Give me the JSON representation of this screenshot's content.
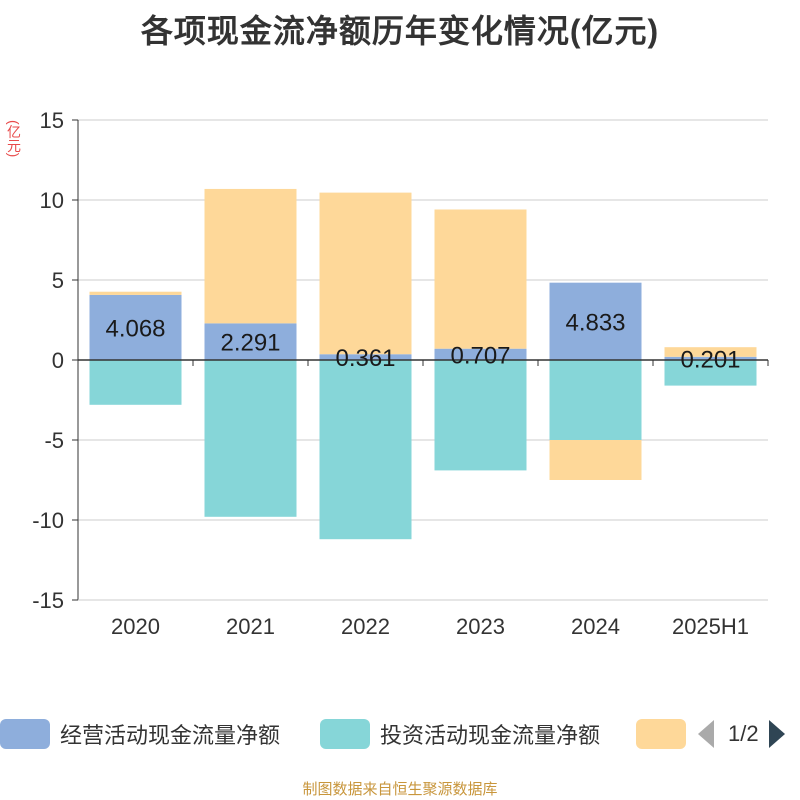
{
  "chart_data": {
    "type": "bar",
    "stacked": true,
    "title": "各项现金流净额历年变化情况(亿元)",
    "unit_label": "(亿元)",
    "categories": [
      "2020",
      "2021",
      "2022",
      "2023",
      "2024",
      "2025H1"
    ],
    "ylim": [
      -15,
      15
    ],
    "yticks": [
      "15",
      "10",
      "5",
      "0",
      "-5",
      "-10",
      "-15"
    ],
    "ytick_values": [
      15,
      10,
      5,
      0,
      -5,
      -10,
      -15
    ],
    "grid": true,
    "legend_position": "bottom",
    "series": [
      {
        "name": "经营活动现金流量净额",
        "color": "#8eaedc",
        "values": [
          4.068,
          2.291,
          0.361,
          0.707,
          4.833,
          0.201
        ],
        "labels": [
          "4.068",
          "2.291",
          "0.361",
          "0.707",
          "4.833",
          "0.201"
        ]
      },
      {
        "name": "投资活动现金流量净额",
        "color": "#86d6d8",
        "values": [
          -2.8,
          -9.8,
          -11.2,
          -6.9,
          -5.0,
          -1.6
        ]
      },
      {
        "name": "",
        "color": "#fed899",
        "values": [
          0.2,
          8.4,
          10.1,
          8.7,
          -2.5,
          0.6
        ]
      }
    ]
  },
  "legend": {
    "items": [
      {
        "label": "经营活动现金流量净额",
        "color": "#8eaedc"
      },
      {
        "label": "投资活动现金流量净额",
        "color": "#86d6d8"
      },
      {
        "label": "",
        "color": "#fed899"
      }
    ],
    "page": "1/2"
  },
  "source": "制图数据来自恒生聚源数据库"
}
